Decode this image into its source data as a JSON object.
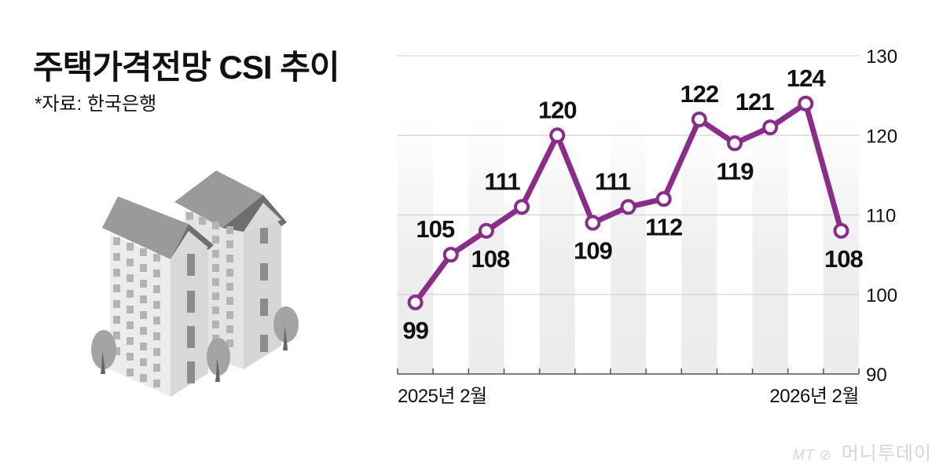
{
  "header": {
    "title": "주택가격전망 CSI 추이",
    "source": "*자료: 한국은행"
  },
  "logo": {
    "mark": "MT ⊘",
    "name": "머니투데이"
  },
  "colors": {
    "line": "#8B2C8A",
    "band": "#ececec",
    "grid": "#cccccc",
    "axis": "#555555",
    "text": "#111111"
  },
  "chart_data": {
    "type": "line",
    "title": "주택가격전망 CSI 추이",
    "xlabel": "",
    "ylabel": "",
    "x": [
      "2025-02",
      "2025-03",
      "2025-04",
      "2025-05",
      "2025-06",
      "2025-07",
      "2025-08",
      "2025-09",
      "2025-10",
      "2025-11",
      "2025-12",
      "2026-01",
      "2026-02"
    ],
    "x_tick_labels": [
      "2025년 2월",
      "",
      "",
      "",
      "",
      "",
      "",
      "",
      "",
      "",
      "",
      "",
      "2026년 2월"
    ],
    "series": [
      {
        "name": "주택가격전망 CSI",
        "values": [
          99,
          105,
          108,
          111,
          120,
          109,
          111,
          112,
          122,
          119,
          121,
          124,
          108
        ]
      }
    ],
    "y_ticks": [
      90,
      100,
      110,
      120,
      130
    ],
    "ylim": [
      90,
      130
    ],
    "grid": true,
    "y_axis_position": "right",
    "data_labels": true,
    "source": "*자료: 한국은행"
  }
}
